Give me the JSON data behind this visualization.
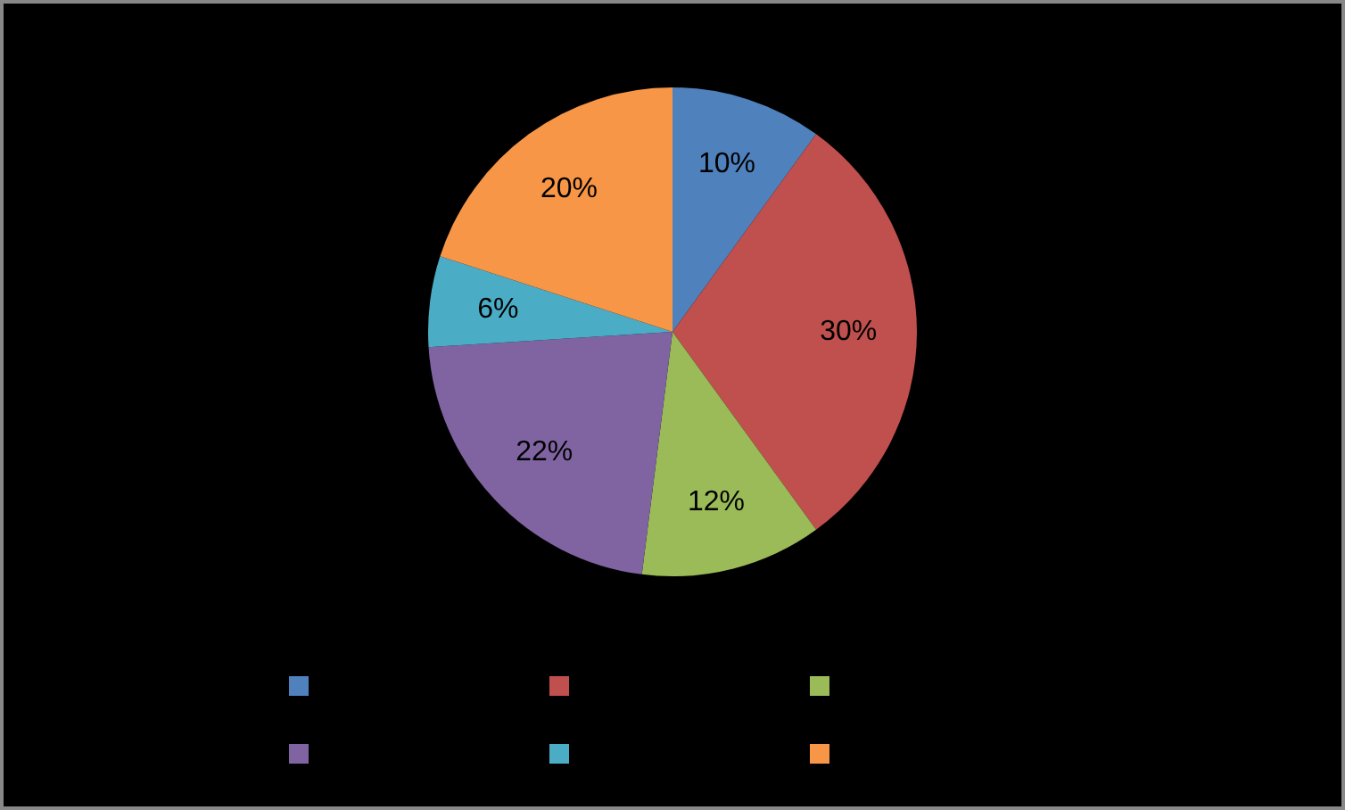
{
  "chart_data": {
    "type": "pie",
    "categories": [
      null,
      null,
      null,
      null,
      null,
      null
    ],
    "values": [
      10,
      30,
      12,
      22,
      6,
      20
    ],
    "colors": [
      "#4f81bd",
      "#c0504d",
      "#9bbb59",
      "#8064a2",
      "#4bacc6",
      "#f79646"
    ],
    "value_labels": [
      "10%",
      "30%",
      "12%",
      "22%",
      "6%",
      "20%"
    ]
  }
}
